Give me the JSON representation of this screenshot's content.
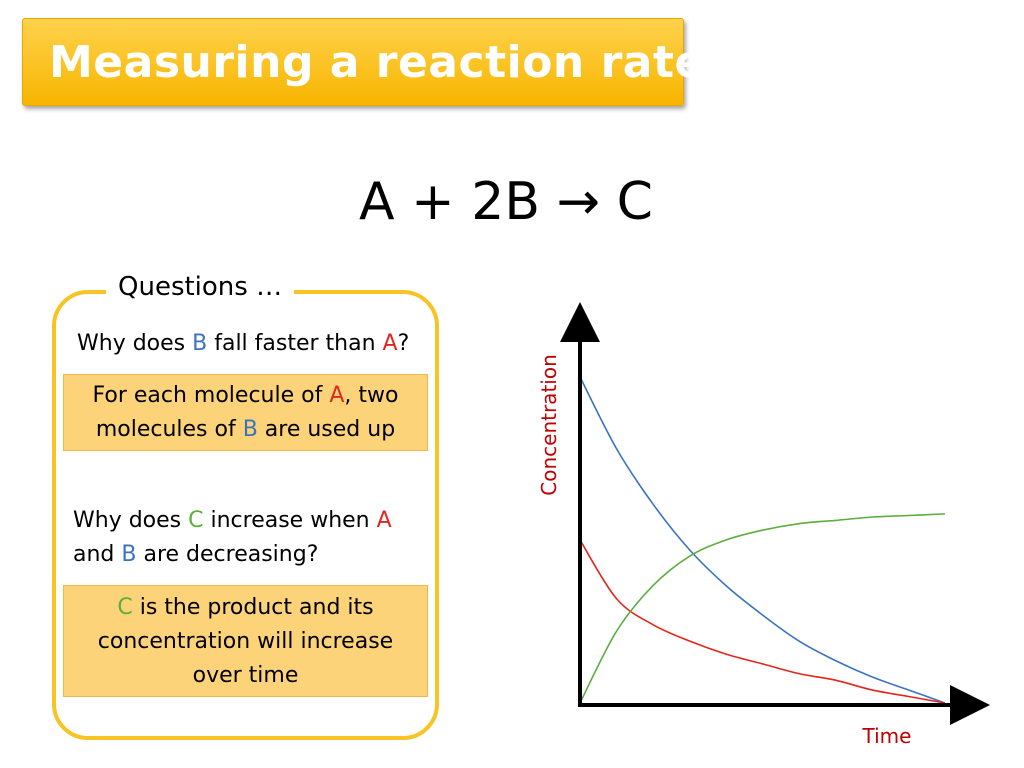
{
  "title": "Measuring a reaction rate",
  "equation": "A + 2B → C",
  "questions": {
    "heading": "Questions …",
    "q1": {
      "parts": [
        "Why does ",
        "B",
        " fall faster than ",
        "A",
        "?"
      ],
      "answer_parts": [
        "For each  molecule of ",
        "A",
        ", two molecules of ",
        "B",
        " are used up"
      ]
    },
    "q2": {
      "parts": [
        "Why does ",
        "C",
        " increase when ",
        "A",
        " and ",
        "B",
        " are decreasing?"
      ],
      "answer_parts": [
        "C",
        " is the product and its concentration will increase over time"
      ]
    }
  },
  "colors": {
    "title_bg": "#f7b500",
    "box_border": "#f7c325",
    "answer_bg": "#fcd379",
    "A": "#e3261b",
    "B": "#3a74c1",
    "C": "#5cae3d",
    "axis_label": "#c00000"
  },
  "chart_data": {
    "type": "line",
    "title": "",
    "xlabel": "Time",
    "ylabel": "Concentration",
    "x": [
      0,
      1,
      2,
      3,
      4,
      5,
      6,
      7,
      8,
      9,
      10
    ],
    "series": [
      {
        "key": "B",
        "color": "#3a74c1",
        "values": [
          1.0,
          0.78,
          0.61,
          0.47,
          0.36,
          0.27,
          0.19,
          0.13,
          0.08,
          0.04,
          0.0
        ]
      },
      {
        "key": "A",
        "color": "#e3261b",
        "values": [
          0.5,
          0.32,
          0.24,
          0.19,
          0.15,
          0.12,
          0.09,
          0.07,
          0.04,
          0.02,
          0.0
        ]
      },
      {
        "key": "C",
        "color": "#5cae3d",
        "values": [
          0.0,
          0.22,
          0.36,
          0.45,
          0.5,
          0.53,
          0.55,
          0.56,
          0.57,
          0.575,
          0.58
        ]
      }
    ],
    "xlim": [
      0,
      10
    ],
    "ylim": [
      0,
      1.15
    ],
    "grid": false
  }
}
